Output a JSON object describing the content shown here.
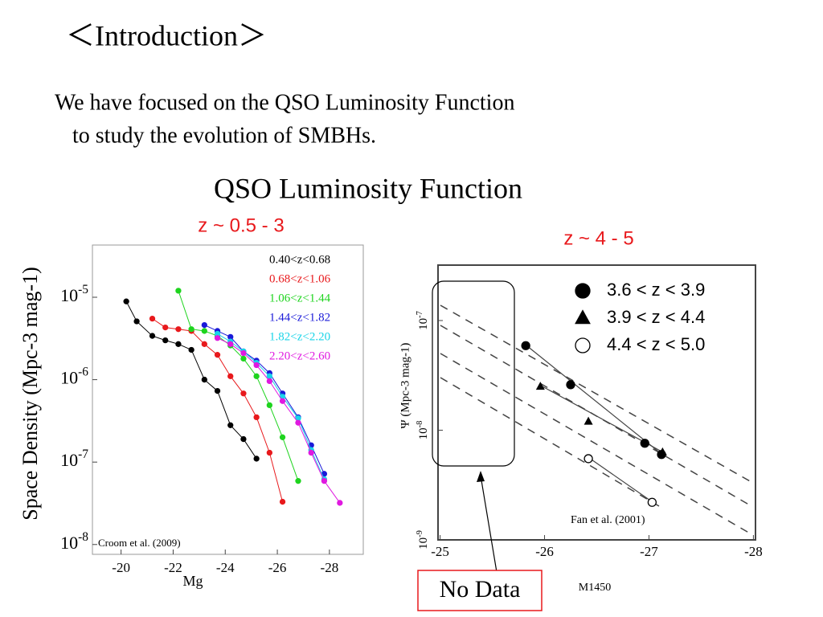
{
  "slide": {
    "title": "＜Introduction＞",
    "body": [
      "We have focused on the QSO Luminosity Function",
      "to study the evolution of SMBHs."
    ],
    "section_title": "QSO Luminosity Function",
    "callout": "No Data"
  },
  "chart_data": [
    {
      "type": "scatter",
      "subtitle": "z ~ 0.5 - 3",
      "xlabel": "Mg",
      "ylabel": "Space Density (Mpc-3 mag-1)",
      "annotation": "Croom et al. (2009)",
      "yscale": "log",
      "lines": true,
      "legend": "upper right",
      "xlim": [
        -18.9,
        -29.3
      ],
      "xticks": [
        -20,
        -22,
        -24,
        -26,
        -28
      ],
      "ylim": [
        7.6e-09,
        4.3e-05
      ],
      "yticks": [
        {
          "value": 1e-05,
          "label": "10-5"
        },
        {
          "value": 1e-06,
          "label": "10-6"
        },
        {
          "value": 1e-07,
          "label": "10-7"
        },
        {
          "value": 1e-08,
          "label": "10-8"
        }
      ],
      "series": [
        {
          "name": "0.40<z<0.68",
          "color": "#000000",
          "marker": "circle",
          "x": [
            -20.2,
            -20.6,
            -21.2,
            -21.7,
            -22.2,
            -22.7,
            -23.2,
            -23.7,
            -24.2,
            -24.7,
            -25.2
          ],
          "values": [
            8.9e-06,
            5.1e-06,
            3.4e-06,
            3e-06,
            2.7e-06,
            2.3e-06,
            1e-06,
            7.3e-07,
            2.8e-07,
            1.9e-07,
            1.1e-07
          ]
        },
        {
          "name": "0.68<z<1.06",
          "color": "#e8191c",
          "marker": "circle",
          "x": [
            -21.2,
            -21.7,
            -22.2,
            -22.7,
            -23.2,
            -23.7,
            -24.2,
            -24.7,
            -25.2,
            -25.7,
            -26.2
          ],
          "values": [
            5.5e-06,
            4.3e-06,
            4.1e-06,
            3.9e-06,
            2.7e-06,
            2e-06,
            1.1e-06,
            6.8e-07,
            3.5e-07,
            1.3e-07,
            3.3e-08
          ]
        },
        {
          "name": "1.06<z<1.44",
          "color": "#1ed41e",
          "marker": "circle",
          "x": [
            -22.2,
            -22.7,
            -23.2,
            -23.7,
            -24.2,
            -24.7,
            -25.2,
            -25.7,
            -26.2,
            -26.8
          ],
          "values": [
            1.2e-05,
            4.1e-06,
            3.9e-06,
            3.4e-06,
            2.6e-06,
            1.8e-06,
            1.1e-06,
            4.9e-07,
            2e-07,
            5.9e-08
          ]
        },
        {
          "name": "1.44<z<1.82",
          "color": "#1a1ad8",
          "marker": "circle",
          "x": [
            -23.2,
            -23.7,
            -24.2,
            -24.7,
            -25.2,
            -25.7,
            -26.2,
            -26.8,
            -27.3,
            -27.8
          ],
          "values": [
            4.6e-06,
            3.9e-06,
            3.3e-06,
            2.2e-06,
            1.7e-06,
            1.2e-06,
            6.8e-07,
            3.5e-07,
            1.6e-07,
            7.2e-08
          ]
        },
        {
          "name": "1.82<z<2.20",
          "color": "#19d4e8",
          "marker": "circle",
          "x": [
            -23.7,
            -24.2,
            -24.7,
            -25.2,
            -25.7,
            -26.2,
            -26.8,
            -27.3,
            -27.8
          ],
          "values": [
            3.6e-06,
            2.9e-06,
            2.2e-06,
            1.6e-06,
            1.1e-06,
            6.2e-07,
            3.4e-07,
            1.4e-07,
            6.2e-08
          ]
        },
        {
          "name": "2.20<z<2.60",
          "color": "#e019e0",
          "marker": "circle",
          "x": [
            -23.7,
            -24.2,
            -24.7,
            -25.2,
            -25.7,
            -26.2,
            -26.8,
            -27.3,
            -27.8,
            -28.4
          ],
          "values": [
            3.2e-06,
            2.7e-06,
            2.1e-06,
            1.5e-06,
            9.6e-07,
            5.5e-07,
            3e-07,
            1.3e-07,
            5.9e-08,
            3.2e-08
          ]
        }
      ]
    },
    {
      "type": "scatter",
      "subtitle": "z ~ 4 - 5",
      "xlabel": "M1450",
      "ylabel": "Ψ (Mpc-3 mag-1)",
      "annotation": "Fan et al. (2001)",
      "yscale": "log",
      "lines": false,
      "legend": "upper right",
      "xlim": [
        -24.98,
        -28.02
      ],
      "xticks": [
        -25,
        -26,
        -27,
        -28
      ],
      "ylim": [
        1e-09,
        3.2e-07
      ],
      "yticks": [
        {
          "value": 1e-07,
          "label": "10-7"
        },
        {
          "value": 1e-08,
          "label": "10-8"
        },
        {
          "value": 1e-09,
          "label": "10-9"
        }
      ],
      "series": [
        {
          "name": "3.6 < z < 3.9",
          "color": "#000000",
          "marker": "circle",
          "x": [
            -25.82,
            -26.25,
            -26.96,
            -27.12
          ],
          "values": [
            5.9e-08,
            2.6e-08,
            7.6e-09,
            6e-09
          ]
        },
        {
          "name": "3.9 < z < 4.4",
          "color": "#000000",
          "marker": "triangle",
          "x": [
            -25.96,
            -26.42,
            -27.13
          ],
          "values": [
            2.5e-08,
            1.2e-08,
            6.3e-09
          ]
        },
        {
          "name": "4.4 < z < 5.0",
          "color": "#000000",
          "marker": "open-circle",
          "x": [
            -26.42,
            -27.03
          ],
          "values": [
            5.5e-09,
            2.2e-09
          ]
        }
      ]
    }
  ]
}
